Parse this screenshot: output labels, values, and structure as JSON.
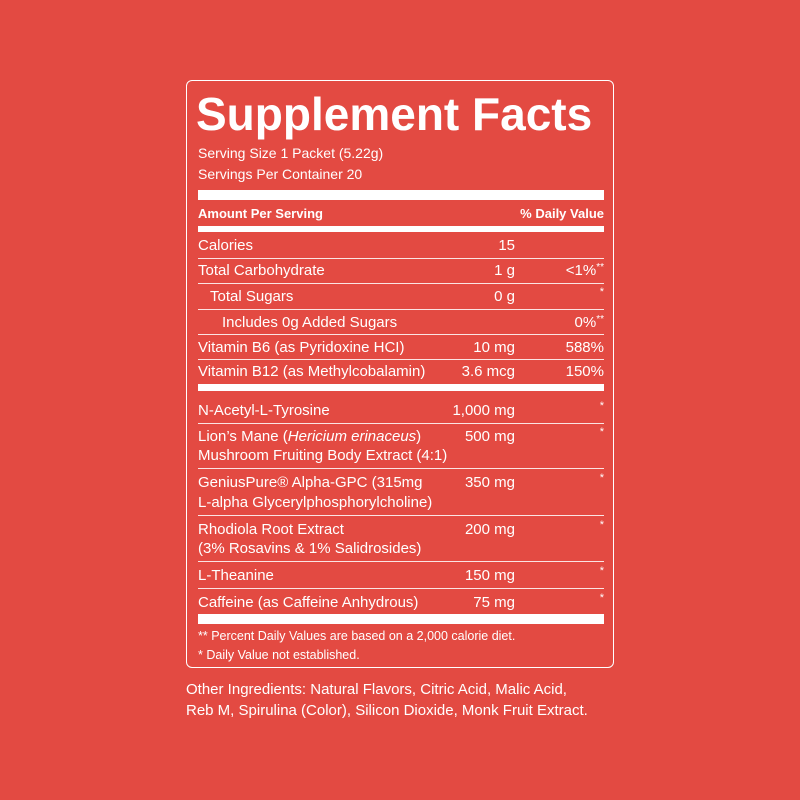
{
  "title": "Supplement Facts",
  "serving_size": "Serving Size 1 Packet (5.22g)",
  "servings_per_container": "Servings Per Container 20",
  "header": {
    "amount": "Amount Per Serving",
    "daily_value": "% Daily Value"
  },
  "sections": [
    {
      "rows": [
        {
          "name": "Calories",
          "amount": "15"
        },
        {
          "name": "Total Carbohydrate",
          "amount": "1 g",
          "dv": "<1%",
          "dv_note": "**"
        },
        {
          "name": "Total Sugars",
          "amount": "0 g",
          "dv": "*"
        },
        {
          "name": "Includes 0g Added Sugars",
          "dv": "0%",
          "dv_note": "**"
        },
        {
          "name": "Vitamin B6 (as Pyridoxine HCI)",
          "amount": "10 mg",
          "dv": "588%"
        },
        {
          "name": "Vitamin B12 (as Methylcobalamin)",
          "amount": "3.6 mcg",
          "dv": "150%"
        }
      ]
    },
    {
      "rows": [
        {
          "name": "N-Acetyl-L-Tyrosine",
          "amount": "1,000 mg",
          "dv": "*"
        },
        {
          "name_lines": [
            [
              "Lion’s Mane (",
              "Hericium erinaceus",
              ")"
            ],
            "Mushroom Fruiting Body Extract (4:1)"
          ],
          "amount": "500 mg",
          "dv": "*"
        },
        {
          "name_lines": [
            "GeniusPure® Alpha-GPC (315mg",
            "L-alpha Glycerylphosphorylcholine)"
          ],
          "amount": "350 mg",
          "dv": "*"
        },
        {
          "name_lines": [
            "Rhodiola Root Extract",
            "(3% Rosavins & 1% Salidrosides)"
          ],
          "amount": "200 mg",
          "dv": "*"
        },
        {
          "name": "L-Theanine",
          "amount": "150 mg",
          "dv": "*"
        },
        {
          "name": "Caffeine (as Caffeine Anhydrous)",
          "amount": "75 mg",
          "dv": "*"
        }
      ]
    }
  ],
  "footnotes": [
    "** Percent Daily Values are based on a 2,000 calorie diet.",
    "* Daily Value not established."
  ],
  "other_ingredients": [
    "Other Ingredients: Natural Flavors, Citric Acid, Malic Acid,",
    "Reb M, Spirulina (Color), Silicon Dioxide, Monk Fruit Extract."
  ]
}
